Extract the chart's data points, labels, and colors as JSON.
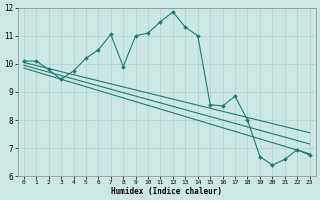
{
  "xlabel": "Humidex (Indice chaleur)",
  "xlim": [
    -0.5,
    23.5
  ],
  "ylim": [
    6,
    12
  ],
  "xticks": [
    0,
    1,
    2,
    3,
    4,
    5,
    6,
    7,
    8,
    9,
    10,
    11,
    12,
    13,
    14,
    15,
    16,
    17,
    18,
    19,
    20,
    21,
    22,
    23
  ],
  "yticks": [
    6,
    7,
    8,
    9,
    10,
    11,
    12
  ],
  "bg_color": "#cce8e5",
  "grid_color": "#b0d8d4",
  "line_color": "#1e7a70",
  "line1_x": [
    0,
    1,
    2,
    3,
    4,
    5,
    6,
    7,
    8,
    9,
    10,
    11,
    12,
    13,
    14,
    15,
    16,
    17,
    18,
    19,
    20,
    21,
    22,
    23
  ],
  "line1_y": [
    10.1,
    10.1,
    9.8,
    9.45,
    9.75,
    10.2,
    10.5,
    11.05,
    9.9,
    11.0,
    11.1,
    11.5,
    11.85,
    11.3,
    11.0,
    8.55,
    8.5,
    8.85,
    8.0,
    6.7,
    6.4,
    6.6,
    6.95,
    6.75
  ],
  "trend1_x": [
    0,
    23
  ],
  "trend1_y": [
    10.05,
    7.55
  ],
  "trend2_x": [
    0,
    23
  ],
  "trend2_y": [
    9.95,
    7.15
  ],
  "trend3_x": [
    0,
    23
  ],
  "trend3_y": [
    9.85,
    6.8
  ]
}
